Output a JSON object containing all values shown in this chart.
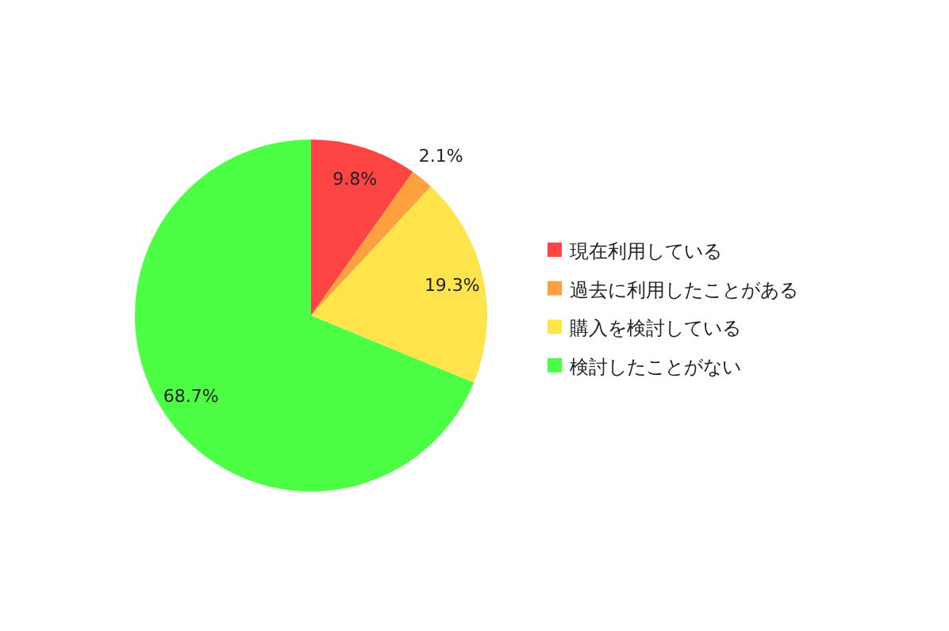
{
  "chart_data": {
    "type": "pie",
    "categories": [
      "現在利用している",
      "過去に利用したことがある",
      "購入を検討している",
      "検討したことがない"
    ],
    "values": [
      9.8,
      2.1,
      19.3,
      68.7
    ],
    "colors": [
      "#ff4444",
      "#ffa040",
      "#ffe44c",
      "#4cff44"
    ],
    "value_labels": [
      "9.8%",
      "2.1%",
      "19.3%",
      "68.7%"
    ],
    "legend": "right"
  }
}
